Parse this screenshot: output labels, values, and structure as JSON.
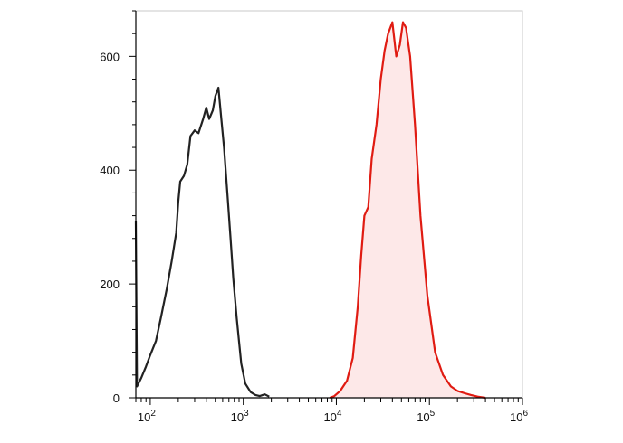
{
  "chart_data": {
    "type": "area",
    "title": "",
    "xlabel": "",
    "ylabel": "",
    "x_scale": "log",
    "xlim": [
      70,
      1000000
    ],
    "ylim": [
      0,
      680
    ],
    "grid": false,
    "x_ticks": [
      {
        "value": 100,
        "base": "10",
        "exp": "2"
      },
      {
        "value": 1000,
        "base": "10",
        "exp": "3"
      },
      {
        "value": 10000,
        "base": "10",
        "exp": "4"
      },
      {
        "value": 100000,
        "base": "10",
        "exp": "5"
      },
      {
        "value": 1000000,
        "base": "10",
        "exp": "6"
      }
    ],
    "y_ticks": [
      {
        "value": 0,
        "label": "0"
      },
      {
        "value": 200,
        "label": "200"
      },
      {
        "value": 400,
        "label": "400"
      },
      {
        "value": 600,
        "label": "600"
      }
    ],
    "series": [
      {
        "color": "#222222",
        "fill": "none",
        "points": [
          [
            70,
            310
          ],
          [
            72,
            20
          ],
          [
            80,
            35
          ],
          [
            90,
            55
          ],
          [
            100,
            75
          ],
          [
            115,
            100
          ],
          [
            130,
            140
          ],
          [
            150,
            190
          ],
          [
            170,
            240
          ],
          [
            190,
            290
          ],
          [
            200,
            345
          ],
          [
            210,
            380
          ],
          [
            230,
            390
          ],
          [
            250,
            410
          ],
          [
            270,
            460
          ],
          [
            300,
            470
          ],
          [
            330,
            465
          ],
          [
            370,
            490
          ],
          [
            400,
            510
          ],
          [
            430,
            490
          ],
          [
            470,
            505
          ],
          [
            500,
            530
          ],
          [
            540,
            545
          ],
          [
            580,
            490
          ],
          [
            620,
            440
          ],
          [
            680,
            350
          ],
          [
            730,
            280
          ],
          [
            780,
            210
          ],
          [
            850,
            140
          ],
          [
            950,
            60
          ],
          [
            1050,
            25
          ],
          [
            1200,
            10
          ],
          [
            1350,
            5
          ],
          [
            1500,
            3
          ],
          [
            1700,
            6
          ],
          [
            1900,
            2
          ]
        ]
      },
      {
        "color": "#e01b12",
        "fill": "#fde8e8",
        "points": [
          [
            8500,
            0
          ],
          [
            9500,
            3
          ],
          [
            11000,
            12
          ],
          [
            13000,
            30
          ],
          [
            15000,
            70
          ],
          [
            17000,
            160
          ],
          [
            18500,
            250
          ],
          [
            20000,
            320
          ],
          [
            22000,
            335
          ],
          [
            24000,
            420
          ],
          [
            27000,
            480
          ],
          [
            30000,
            560
          ],
          [
            33000,
            610
          ],
          [
            36000,
            640
          ],
          [
            40000,
            660
          ],
          [
            44000,
            600
          ],
          [
            48000,
            620
          ],
          [
            52000,
            660
          ],
          [
            56000,
            650
          ],
          [
            62000,
            600
          ],
          [
            70000,
            480
          ],
          [
            80000,
            320
          ],
          [
            95000,
            180
          ],
          [
            115000,
            80
          ],
          [
            140000,
            40
          ],
          [
            170000,
            20
          ],
          [
            200000,
            12
          ],
          [
            240000,
            8
          ],
          [
            280000,
            5
          ],
          [
            330000,
            2
          ],
          [
            400000,
            0
          ]
        ]
      }
    ]
  }
}
